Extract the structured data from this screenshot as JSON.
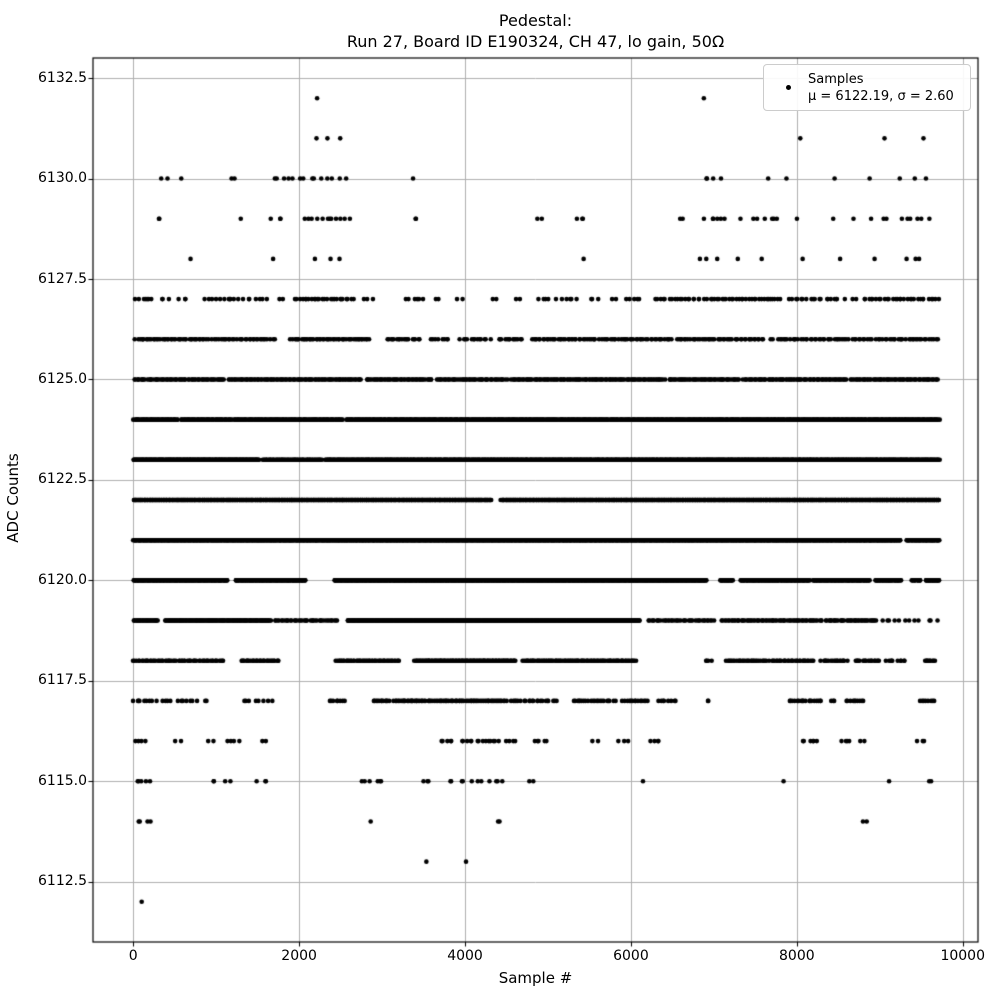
{
  "title": {
    "line1": "Pedestal:",
    "line2": "Run 27, Board ID E190324, CH 47, lo gain, 50Ω"
  },
  "legend": {
    "series_label": "Samples",
    "stats_label": "μ = 6122.19, σ = 2.60",
    "marker": "black-dot"
  },
  "colors": {
    "background": "#ffffff",
    "marker": "#000000",
    "grid": "#b0b0b0",
    "spine": "#000000",
    "text": "#000000",
    "legend_border": "#cccccc"
  },
  "chart_data": {
    "type": "scatter",
    "title": "Pedestal:\nRun 27, Board ID E190324, CH 47, lo gain, 50Ω",
    "xlabel": "Sample #",
    "ylabel": "ADC Counts",
    "series_name": "Samples",
    "stats": {
      "mu": 6122.19,
      "sigma": 2.6
    },
    "n_samples_approx": 9700,
    "x_data_range": [
      0,
      9720
    ],
    "xlim": [
      -485,
      10184
    ],
    "ylim": [
      6111,
      6133
    ],
    "grid": true,
    "legend_position": "upper right",
    "xticks": [
      0,
      2000,
      4000,
      6000,
      8000,
      10000
    ],
    "xtick_labels": [
      "0",
      "2000",
      "4000",
      "6000",
      "8000",
      "10000"
    ],
    "yticks": [
      6112.5,
      6115.0,
      6117.5,
      6120.0,
      6122.5,
      6125.0,
      6127.5,
      6130.0,
      6132.5
    ],
    "ytick_labels": [
      "6112.5",
      "6115.0",
      "6117.5",
      "6120.0",
      "6122.5",
      "6125.0",
      "6127.5",
      "6130.0",
      "6132.5"
    ],
    "marker": {
      "color": "#000000",
      "radius_px": 2.3
    },
    "levels": [
      {
        "adc": 6112,
        "segments": [
          [
            90,
            110,
            1
          ]
        ]
      },
      {
        "adc": 6113,
        "segments": [
          [
            3525,
            3545,
            1
          ],
          [
            3995,
            4015,
            1
          ]
        ]
      },
      {
        "adc": 6114,
        "segments": [
          [
            20,
            260,
            4
          ],
          [
            2850,
            2870,
            1
          ],
          [
            4350,
            4440,
            2
          ],
          [
            8795,
            8840,
            2
          ]
        ]
      },
      {
        "adc": 6115,
        "segments": [
          [
            20,
            210,
            5
          ],
          [
            950,
            1010,
            2
          ],
          [
            1090,
            1170,
            2
          ],
          [
            1500,
            1670,
            3
          ],
          [
            2750,
            3050,
            6
          ],
          [
            3500,
            3570,
            3
          ],
          [
            3790,
            3860,
            2
          ],
          [
            3950,
            4010,
            2
          ],
          [
            4090,
            4210,
            3
          ],
          [
            4290,
            4490,
            4
          ],
          [
            4740,
            4820,
            2
          ],
          [
            6130,
            6160,
            1
          ],
          [
            7835,
            7860,
            1
          ],
          [
            9105,
            9130,
            1
          ],
          [
            9590,
            9660,
            2
          ]
        ]
      },
      {
        "adc": 6116,
        "segments": [
          [
            0,
            140,
            4
          ],
          [
            510,
            570,
            2
          ],
          [
            890,
            960,
            2
          ],
          [
            1140,
            1310,
            4
          ],
          [
            1540,
            1610,
            2
          ],
          [
            3690,
            3860,
            5
          ],
          [
            3940,
            4210,
            8
          ],
          [
            4240,
            4410,
            6
          ],
          [
            4490,
            4610,
            4
          ],
          [
            4790,
            4910,
            3
          ],
          [
            4940,
            5010,
            2
          ],
          [
            5540,
            5610,
            2
          ],
          [
            5840,
            5960,
            3
          ],
          [
            6240,
            6360,
            4
          ],
          [
            8040,
            8110,
            2
          ],
          [
            8140,
            8260,
            4
          ],
          [
            8540,
            8660,
            4
          ],
          [
            8740,
            8810,
            2
          ],
          [
            9440,
            9560,
            3
          ]
        ]
      },
      {
        "adc": 6117,
        "segments": [
          [
            0,
            220,
            8
          ],
          [
            280,
            900,
            14
          ],
          [
            1290,
            1710,
            8
          ],
          [
            2350,
            2560,
            8
          ],
          [
            2890,
            3100,
            12
          ],
          [
            3140,
            3520,
            25
          ],
          [
            3550,
            4510,
            55
          ],
          [
            4540,
            5110,
            22
          ],
          [
            5290,
            5810,
            22
          ],
          [
            5890,
            6210,
            14
          ],
          [
            6290,
            6560,
            8
          ],
          [
            6890,
            6960,
            2
          ],
          [
            7890,
            8310,
            18
          ],
          [
            8390,
            8460,
            3
          ],
          [
            8590,
            8810,
            10
          ],
          [
            9490,
            9660,
            8
          ]
        ]
      },
      {
        "adc": 6118,
        "segments": [
          [
            0,
            1100,
            62
          ],
          [
            1290,
            1760,
            32
          ],
          [
            2440,
            3210,
            52
          ],
          [
            3390,
            4610,
            112
          ],
          [
            4690,
            6060,
            100
          ],
          [
            6890,
            6970,
            4
          ],
          [
            7140,
            7660,
            30
          ],
          [
            7690,
            8210,
            30
          ],
          [
            8290,
            8610,
            18
          ],
          [
            8690,
            9010,
            18
          ],
          [
            9070,
            9170,
            5
          ],
          [
            9220,
            9310,
            5
          ],
          [
            9530,
            9670,
            10
          ]
        ]
      },
      {
        "adc": 6119,
        "segments": [
          [
            0,
            300,
            32
          ],
          [
            380,
            1660,
            150
          ],
          [
            1700,
            2460,
            40
          ],
          [
            2580,
            6110,
            540
          ],
          [
            6190,
            7010,
            40
          ],
          [
            7090,
            8310,
            70
          ],
          [
            8340,
            8960,
            40
          ],
          [
            9000,
            9710,
            12
          ]
        ]
      },
      {
        "adc": 6120,
        "segments": [
          [
            0,
            1140,
            165
          ],
          [
            1230,
            2080,
            120
          ],
          [
            2420,
            6910,
            700
          ],
          [
            7070,
            7230,
            22
          ],
          [
            7320,
            8160,
            110
          ],
          [
            8190,
            8880,
            90
          ],
          [
            8940,
            9260,
            40
          ],
          [
            9380,
            9500,
            12
          ],
          [
            9550,
            9720,
            25
          ]
        ]
      },
      {
        "adc": 6121,
        "segments": [
          [
            0,
            9250,
            1450
          ],
          [
            9320,
            9720,
            60
          ]
        ]
      },
      {
        "adc": 6122,
        "segments": [
          [
            0,
            4320,
            640
          ],
          [
            4430,
            9720,
            790
          ]
        ]
      },
      {
        "adc": 6123,
        "segments": [
          [
            0,
            1520,
            230
          ],
          [
            1560,
            2280,
            70
          ],
          [
            2310,
            9720,
            890
          ]
        ]
      },
      {
        "adc": 6124,
        "segments": [
          [
            0,
            540,
            48
          ],
          [
            570,
            1190,
            56
          ],
          [
            1210,
            2530,
            115
          ],
          [
            2560,
            9720,
            640
          ]
        ]
      },
      {
        "adc": 6125,
        "segments": [
          [
            0,
            1110,
            70
          ],
          [
            1150,
            2760,
            105
          ],
          [
            2800,
            3610,
            52
          ],
          [
            3650,
            4510,
            52
          ],
          [
            4550,
            6410,
            122
          ],
          [
            6450,
            7310,
            56
          ],
          [
            7350,
            8610,
            82
          ],
          [
            8650,
            9710,
            66
          ]
        ]
      },
      {
        "adc": 6126,
        "segments": [
          [
            20,
            910,
            42
          ],
          [
            950,
            1710,
            32
          ],
          [
            1890,
            2860,
            48
          ],
          [
            3040,
            3460,
            18
          ],
          [
            3590,
            3810,
            8
          ],
          [
            3940,
            4310,
            13
          ],
          [
            4390,
            4710,
            13
          ],
          [
            4790,
            5610,
            36
          ],
          [
            5640,
            6510,
            36
          ],
          [
            6540,
            7610,
            46
          ],
          [
            7690,
            8910,
            46
          ],
          [
            8940,
            9710,
            30
          ]
        ]
      },
      {
        "adc": 6127,
        "segments": [
          [
            30,
            260,
            7
          ],
          [
            300,
            430,
            3
          ],
          [
            540,
            660,
            3
          ],
          [
            840,
            1610,
            18
          ],
          [
            1740,
            1810,
            2
          ],
          [
            1940,
            2660,
            26
          ],
          [
            2790,
            2910,
            3
          ],
          [
            3290,
            3510,
            6
          ],
          [
            3640,
            3710,
            2
          ],
          [
            3890,
            3960,
            2
          ],
          [
            4340,
            4410,
            2
          ],
          [
            4590,
            4660,
            2
          ],
          [
            4890,
            5010,
            4
          ],
          [
            5090,
            5360,
            6
          ],
          [
            5490,
            5610,
            3
          ],
          [
            5740,
            5810,
            2
          ],
          [
            5940,
            6110,
            5
          ],
          [
            6290,
            6910,
            20
          ],
          [
            6940,
            7810,
            30
          ],
          [
            7890,
            8310,
            12
          ],
          [
            8340,
            8510,
            6
          ],
          [
            8590,
            8710,
            3
          ],
          [
            8790,
            9710,
            30
          ]
        ]
      },
      {
        "adc": 6128,
        "segments": [
          [
            690,
            720,
            1
          ],
          [
            1680,
            1700,
            1
          ],
          [
            2140,
            2470,
            3
          ],
          [
            5400,
            5430,
            1
          ],
          [
            6800,
            7040,
            3
          ],
          [
            7270,
            7290,
            1
          ],
          [
            7560,
            7580,
            1
          ],
          [
            8070,
            8090,
            1
          ],
          [
            8510,
            8530,
            1
          ],
          [
            8920,
            8940,
            1
          ],
          [
            9240,
            9560,
            3
          ]
        ]
      },
      {
        "adc": 6129,
        "segments": [
          [
            280,
            340,
            2
          ],
          [
            1280,
            1320,
            1
          ],
          [
            1670,
            1830,
            3
          ],
          [
            2070,
            2630,
            12
          ],
          [
            3370,
            3430,
            2
          ],
          [
            4860,
            4940,
            2
          ],
          [
            5280,
            5460,
            3
          ],
          [
            6520,
            6700,
            2
          ],
          [
            6870,
            7190,
            6
          ],
          [
            7280,
            7330,
            1
          ],
          [
            7430,
            7830,
            6
          ],
          [
            7980,
            8020,
            1
          ],
          [
            8430,
            8470,
            1
          ],
          [
            8670,
            8710,
            1
          ],
          [
            8860,
            8900,
            1
          ],
          [
            9020,
            9630,
            8
          ]
        ]
      },
      {
        "adc": 6130,
        "segments": [
          [
            330,
            610,
            3
          ],
          [
            1170,
            1240,
            2
          ],
          [
            1670,
            2560,
            14
          ],
          [
            3350,
            3380,
            1
          ],
          [
            6860,
            7100,
            4
          ],
          [
            7640,
            7660,
            1
          ],
          [
            7860,
            7880,
            1
          ],
          [
            8430,
            8460,
            1
          ],
          [
            8850,
            8880,
            1
          ],
          [
            9200,
            9560,
            3
          ]
        ]
      },
      {
        "adc": 6131,
        "segments": [
          [
            2190,
            2210,
            1
          ],
          [
            2330,
            2350,
            1
          ],
          [
            2490,
            2510,
            1
          ],
          [
            8030,
            8050,
            1
          ],
          [
            9040,
            9060,
            1
          ],
          [
            9510,
            9530,
            1
          ]
        ]
      },
      {
        "adc": 6132,
        "segments": [
          [
            2215,
            2230,
            1
          ],
          [
            6875,
            6895,
            1
          ]
        ]
      }
    ]
  }
}
